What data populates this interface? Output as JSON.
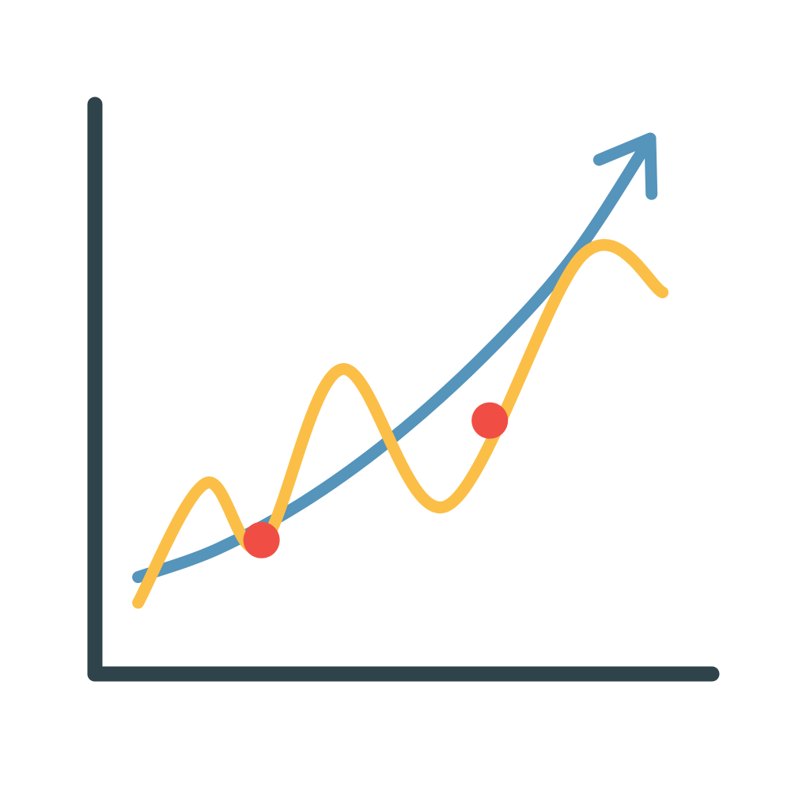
{
  "chart_data": {
    "type": "line",
    "title": "",
    "xlabel": "",
    "ylabel": "",
    "grid": false,
    "legend": "none",
    "xlim": [
      0,
      100
    ],
    "ylim": [
      0,
      100
    ],
    "series": [
      {
        "role": "trend",
        "color": "#5594bb",
        "arrow_end": true,
        "points": [
          [
            7,
            17
          ],
          [
            20,
            22
          ],
          [
            35,
            31
          ],
          [
            50,
            43
          ],
          [
            65,
            58
          ],
          [
            78,
            74
          ],
          [
            90,
            94
          ]
        ]
      },
      {
        "role": "fluctuating",
        "color": "#fbbf47",
        "points": [
          [
            7,
            12.5
          ],
          [
            18,
            33.5
          ],
          [
            27,
            22.5
          ],
          [
            40,
            53.5
          ],
          [
            57,
            29.5
          ],
          [
            79,
            73.5
          ],
          [
            92,
            67
          ]
        ]
      }
    ],
    "highlight_points": [
      {
        "x": 27,
        "y": 23.5,
        "color": "#f04e45"
      },
      {
        "x": 64,
        "y": 44.5,
        "color": "#f04e45"
      }
    ],
    "axis_color": "#2f434a"
  }
}
